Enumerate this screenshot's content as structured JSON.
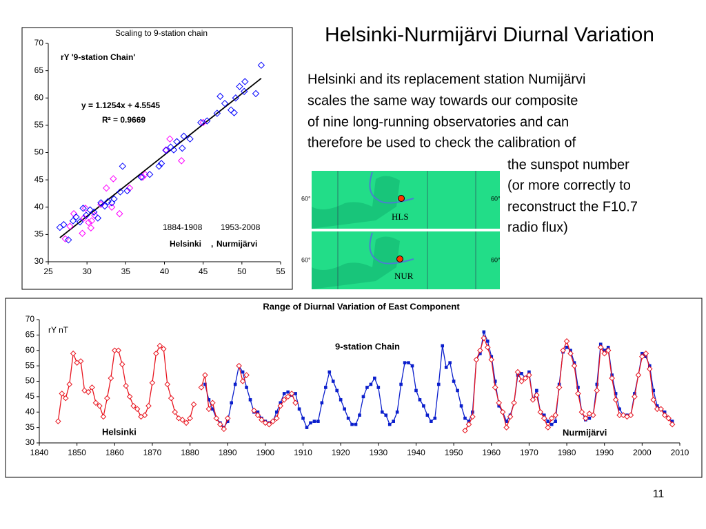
{
  "title": "Helsinki-Nurmijärvi Diurnal Variation",
  "body_lines": [
    "Helsinki and its replacement station Numijärvi",
    "scales the same way towards our composite",
    "of nine long-running observatories and can",
    "therefore be used to check the calibration of",
    "the sunspot number",
    "(or more correctly to",
    "reconstruct the F10.7",
    "radio flux)"
  ],
  "page_number": "11",
  "map": {
    "panels": [
      {
        "station": "HLS",
        "lat_left": "60°",
        "lat_right": "60°"
      },
      {
        "station": "NUR",
        "lat_left": "60°",
        "lat_right": "60°"
      }
    ]
  },
  "chart_data": [
    {
      "type": "scatter",
      "title": "Scaling to 9-station chain",
      "y_label": "rY '9-station Chain'",
      "equation": "y = 1.1254x + 4.5545",
      "r_squared": "R² = 0.9669",
      "legend_separator": ",",
      "xlim": [
        25,
        55
      ],
      "xticks": [
        25,
        30,
        35,
        40,
        45,
        50,
        55
      ],
      "ylim": [
        30,
        70
      ],
      "yticks": [
        30,
        35,
        40,
        45,
        50,
        55,
        60,
        65,
        70
      ],
      "trendline": {
        "x": [
          26.5,
          52.5
        ],
        "y": [
          34.4,
          63.6
        ],
        "color": "#000000"
      },
      "series": [
        {
          "name": "Helsinki",
          "period": "1884-1908",
          "color": "#ff00ff",
          "x": [
            27.2,
            27.8,
            28.3,
            29.4,
            29.6,
            30.2,
            30.5,
            31,
            32.5,
            33.4,
            33.2,
            34.2,
            35.5,
            37.2,
            37.5,
            40.2,
            40.7,
            42.2,
            45,
            29.8,
            31.8,
            30.6
          ],
          "y": [
            34.2,
            36.5,
            38.8,
            35.2,
            38,
            37.2,
            36.2,
            38.5,
            43.5,
            45.2,
            40,
            38.8,
            43.5,
            45.5,
            46,
            50.5,
            52.5,
            48.5,
            55.5,
            39.8,
            40.5,
            37.5
          ]
        },
        {
          "name": "Nurmijärvi",
          "period": "1953-2008",
          "color": "#0000ff",
          "x": [
            26.5,
            27,
            27.6,
            28.2,
            28.6,
            29.1,
            29.5,
            29.9,
            30.4,
            30.9,
            31.4,
            31.8,
            32.3,
            32.7,
            33.2,
            33.5,
            34.3,
            34.6,
            35.2,
            37,
            38.1,
            39.3,
            39.6,
            40.2,
            40.8,
            41.2,
            41.6,
            42.3,
            42.5,
            43.3,
            44.7,
            45.5,
            46.8,
            47.2,
            47.8,
            48.6,
            49,
            49.2,
            49.7,
            50.3,
            50.4,
            51.8,
            52.5
          ],
          "y": [
            36.3,
            36.8,
            34,
            37.5,
            38.2,
            37.3,
            39.8,
            38.5,
            39.5,
            39.1,
            38,
            40.8,
            40.2,
            41,
            40.8,
            41.5,
            42.8,
            47.5,
            43,
            45.5,
            46,
            47.5,
            48,
            50.4,
            51,
            50.5,
            52,
            50.8,
            53,
            52.5,
            55.5,
            55.8,
            57.2,
            60.3,
            59,
            57.8,
            57.3,
            60,
            62.1,
            61.2,
            63,
            60.8,
            66
          ]
        }
      ]
    },
    {
      "type": "line",
      "title": "Range of Diurnal Variation of East Component",
      "y_label": "rY nT",
      "xlim": [
        1840,
        2010
      ],
      "xticks": [
        1840,
        1850,
        1860,
        1870,
        1880,
        1890,
        1900,
        1910,
        1920,
        1930,
        1940,
        1950,
        1960,
        1970,
        1980,
        1990,
        2000,
        2010
      ],
      "ylim": [
        30,
        70
      ],
      "yticks": [
        30,
        35,
        40,
        45,
        50,
        55,
        60,
        65,
        70
      ],
      "series": [
        {
          "name": "Helsinki",
          "color": "#e8141e",
          "marker": "diamond",
          "x": [
            1845,
            1846,
            1847,
            1848,
            1849,
            1850,
            1851,
            1852,
            1853,
            1854,
            1855,
            1856,
            1857,
            1858,
            1859,
            1860,
            1861,
            1862,
            1863,
            1864,
            1865,
            1866,
            1867,
            1868,
            1869,
            1870,
            1871,
            1872,
            1873,
            1874,
            1875,
            1876,
            1877,
            1878,
            1879,
            1880,
            1881,
            1882,
            1883,
            1884,
            1885,
            1886,
            1887,
            1888,
            1889,
            1890,
            1891,
            1892,
            1893,
            1894,
            1895,
            1896,
            1897,
            1898,
            1899,
            1900,
            1901,
            1902,
            1903,
            1904,
            1905,
            1906,
            1907,
            1908
          ],
          "values": [
            37,
            46,
            44.5,
            49,
            59,
            56,
            56.5,
            47,
            46.5,
            48,
            43,
            42,
            38.5,
            44.5,
            51,
            60,
            60,
            55.5,
            48.5,
            45,
            42,
            41,
            38.5,
            39,
            42,
            49.5,
            59,
            61.5,
            60.5,
            49,
            44.5,
            40,
            38,
            37.5,
            36.5,
            38,
            42.5,
            null,
            48,
            52,
            41,
            43,
            38,
            36,
            34.5,
            38,
            null,
            null,
            55,
            50,
            52,
            null,
            40.5,
            39,
            37.5,
            36.5,
            36,
            37,
            38,
            42,
            44,
            45,
            46,
            43
          ]
        },
        {
          "name": "9-station Chain",
          "color": "#0a1ecc",
          "marker": "dot",
          "x": [
            1884,
            1885,
            1886,
            1887,
            1888,
            1889,
            1890,
            1891,
            1892,
            1893,
            1894,
            1895,
            1896,
            1897,
            1898,
            1899,
            1900,
            1901,
            1902,
            1903,
            1904,
            1905,
            1906,
            1907,
            1908,
            1909,
            1910,
            1911,
            1912,
            1913,
            1914,
            1915,
            1916,
            1917,
            1918,
            1919,
            1920,
            1921,
            1922,
            1923,
            1924,
            1925,
            1926,
            1927,
            1928,
            1929,
            1930,
            1931,
            1932,
            1933,
            1934,
            1935,
            1936,
            1937,
            1938,
            1939,
            1940,
            1941,
            1942,
            1943,
            1944,
            1945,
            1946,
            1947,
            1948,
            1949,
            1950,
            1951,
            1952,
            1953,
            1954,
            1955,
            1956,
            1957,
            1958,
            1959,
            1960,
            1961,
            1962,
            1963,
            1964,
            1965,
            1966,
            1967,
            1968,
            1969,
            1970,
            1971,
            1972,
            1973,
            1974,
            1975,
            1976,
            1977,
            1978,
            1979,
            1980,
            1981,
            1982,
            1983,
            1984,
            1985,
            1986,
            1987,
            1988,
            1989,
            1990,
            1991,
            1992,
            1993,
            1994,
            1995,
            1996,
            1997,
            1998,
            1999,
            2000,
            2001,
            2002,
            2003,
            2004,
            2005,
            2006,
            2007,
            2008
          ],
          "values": [
            49,
            44,
            41,
            38,
            36.5,
            35,
            37,
            43,
            49,
            55,
            53,
            48,
            44,
            40,
            40,
            38,
            37,
            36.5,
            37,
            40,
            43,
            46,
            46.5,
            45.5,
            46,
            41,
            38,
            35,
            36.5,
            37,
            37,
            43,
            48,
            53,
            50,
            47,
            44,
            41,
            38,
            36,
            36,
            39,
            45,
            48,
            49,
            51,
            48,
            40,
            39,
            36,
            37,
            40,
            49,
            56,
            56,
            55,
            47,
            44,
            42,
            39,
            37,
            38,
            49,
            61.5,
            54.5,
            56,
            50,
            47,
            42,
            38,
            37,
            40,
            57,
            59,
            66,
            63,
            58,
            50,
            42,
            40,
            37,
            39,
            43,
            52,
            52.5,
            51,
            53,
            44,
            47,
            40,
            39,
            37,
            36,
            37,
            49,
            59.5,
            61,
            60,
            56,
            48,
            40,
            37.5,
            38,
            39,
            49,
            62,
            60,
            61,
            52,
            46,
            41,
            39,
            39,
            39,
            46,
            52,
            59,
            58,
            55,
            47,
            42,
            41,
            40,
            38,
            37
          ]
        },
        {
          "name": "Nurmijärvi",
          "color": "#e8141e",
          "marker": "diamond",
          "x": [
            1953,
            1954,
            1955,
            1956,
            1957,
            1958,
            1959,
            1960,
            1961,
            1962,
            1963,
            1964,
            1965,
            1966,
            1967,
            1968,
            1969,
            1970,
            1971,
            1972,
            1973,
            1974,
            1975,
            1976,
            1977,
            1978,
            1979,
            1980,
            1981,
            1982,
            1983,
            1984,
            1985,
            1986,
            1987,
            1988,
            1989,
            1990,
            1991,
            1992,
            1993,
            1994,
            1995,
            1996,
            1997,
            1998,
            1999,
            2000,
            2001,
            2002,
            2003,
            2004,
            2005,
            2006,
            2007,
            2008
          ],
          "values": [
            34,
            36,
            38.5,
            57,
            60,
            64,
            61,
            57,
            48,
            43,
            40,
            35,
            38.5,
            43,
            53,
            50,
            51,
            52,
            44,
            45.5,
            40,
            38,
            35,
            38,
            39,
            48,
            60,
            63,
            59,
            55,
            46,
            40,
            38,
            39.5,
            39,
            47,
            61,
            59,
            60,
            51,
            44,
            39,
            39,
            38.5,
            39,
            45,
            52,
            58,
            59,
            54,
            44,
            41,
            41,
            39,
            38,
            36
          ]
        }
      ]
    }
  ]
}
